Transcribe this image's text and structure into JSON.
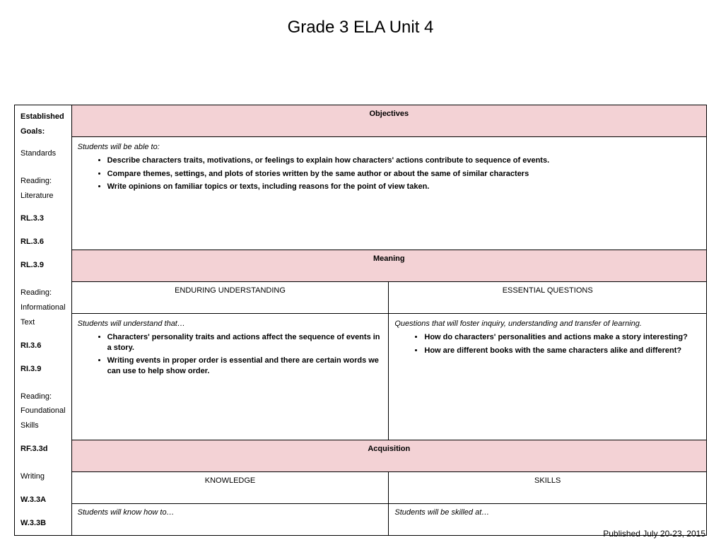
{
  "title": "Grade 3 ELA Unit 4",
  "footer": "Published July 20-23, 2015",
  "left": {
    "heading": "Established Goals:",
    "subheading": "Standards",
    "sections": [
      {
        "title": "Reading: Literature",
        "codes": [
          "RL.3.3",
          "RL.3.6",
          "RL.3.9"
        ]
      },
      {
        "title": "Reading: Informational Text",
        "codes": [
          "RI.3.6",
          "RI.3.9"
        ]
      },
      {
        "title": "Reading: Foundational Skills",
        "codes": [
          "RF.3.3d"
        ]
      },
      {
        "title": "Writing",
        "codes": [
          "W.3.3A",
          "W.3.3B"
        ]
      }
    ]
  },
  "objectives": {
    "header": "Objectives",
    "lead": "Students will be able to:",
    "items": [
      "Describe characters traits, motivations, or feelings to explain how characters' actions contribute to sequence of events.",
      "Compare themes, settings, and plots of stories written by the same author or about the same of similar characters",
      "Write opinions on familiar topics or texts, including reasons for the point of view taken."
    ]
  },
  "meaning": {
    "header": "Meaning",
    "left_header": "ENDURING UNDERSTANDING",
    "right_header": "ESSENTIAL QUESTIONS",
    "left_lead": "Students will understand that…",
    "right_lead": "Questions that will foster inquiry, understanding and transfer of learning.",
    "left_items": [
      "Characters' personality traits and actions affect the sequence of events in a story.",
      "Writing events in proper order is essential and there are certain words we can use to help show order."
    ],
    "right_items": [
      "How do characters' personalities and actions make a story interesting?",
      "How are different books with the same characters alike and different?"
    ]
  },
  "acquisition": {
    "header": "Acquisition",
    "left_header": "KNOWLEDGE",
    "right_header": "SKILLS",
    "left_lead": "Students will know how to…",
    "right_lead": "Students will be skilled at…"
  },
  "colors": {
    "section_bg": "#f3d2d5",
    "border": "#000000",
    "background": "#ffffff"
  }
}
